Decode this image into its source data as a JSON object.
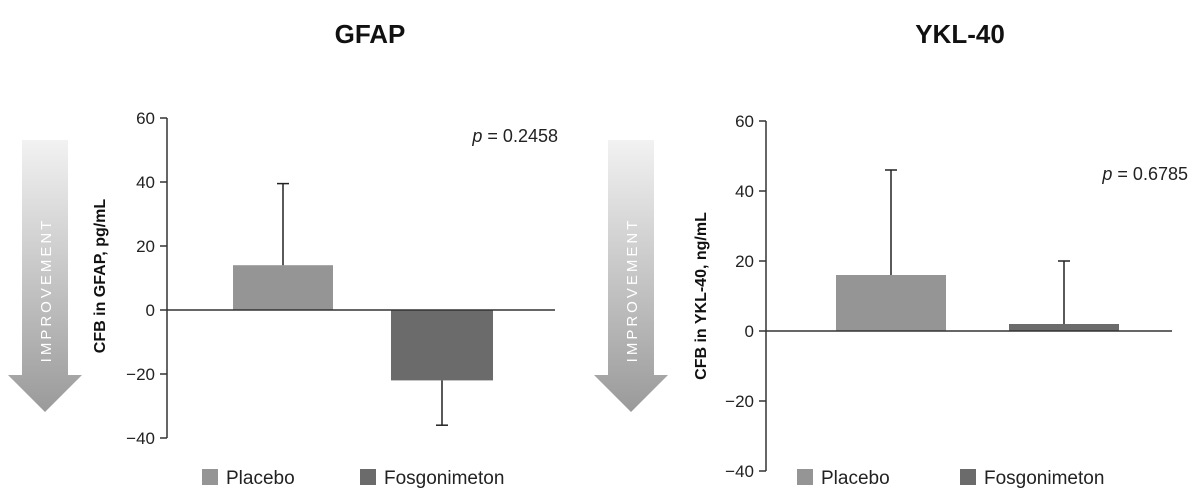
{
  "improvement_label": "IMPROVEMENT",
  "colors": {
    "placebo": "#959595",
    "fosgonimeton": "#6b6b6b",
    "arrow_top": "#f2f2f2",
    "arrow_bottom": "#9a9a9a"
  },
  "chart_data": [
    {
      "type": "bar",
      "title": "GFAP",
      "ylabel": "CFB in GFAP, pg/mL",
      "xlabel": "",
      "ylim": [
        -40,
        60
      ],
      "yticks": [
        60,
        40,
        20,
        0,
        -20,
        -40
      ],
      "yticks_text": [
        "60",
        "40",
        "20",
        "0",
        "−20",
        "−40"
      ],
      "categories": [
        "Placebo",
        "Fosgonimeton"
      ],
      "values": [
        14,
        -22
      ],
      "error_bars": [
        39.5,
        -36
      ],
      "p_value_prefix": "p",
      "p_value_text": " = 0.2458",
      "legend": [
        "Placebo",
        "Fosgonimeton"
      ],
      "legend_position": "bottom"
    },
    {
      "type": "bar",
      "title": "YKL-40",
      "ylabel": "CFB in YKL-40, ng/mL",
      "xlabel": "",
      "ylim": [
        -40,
        60
      ],
      "yticks": [
        60,
        40,
        20,
        0,
        -20,
        -40
      ],
      "yticks_text": [
        "60",
        "40",
        "20",
        "0",
        "−20",
        "−40"
      ],
      "categories": [
        "Placebo",
        "Fosgonimeton"
      ],
      "values": [
        16,
        2
      ],
      "error_bars": [
        46,
        20
      ],
      "p_value_prefix": "p",
      "p_value_text": " = 0.6785",
      "legend": [
        "Placebo",
        "Fosgonimeton"
      ],
      "legend_position": "bottom"
    }
  ]
}
